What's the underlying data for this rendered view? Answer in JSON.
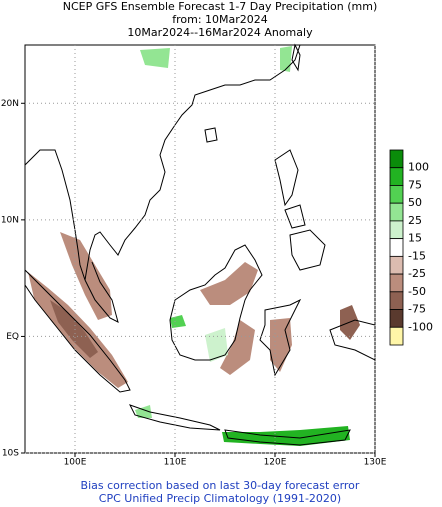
{
  "header": {
    "title": "NCEP GFS Ensemble Forecast 1-7 Day Precipitation (mm)",
    "line2": "from: 10Mar2024",
    "line3": "10Mar2024--16Mar2024 Anomaly"
  },
  "map": {
    "lon_range": [
      95,
      130
    ],
    "lat_range": [
      -10,
      25
    ],
    "lon_ticks": [
      {
        "value": 100,
        "label": "100E"
      },
      {
        "value": 110,
        "label": "110E"
      },
      {
        "value": 120,
        "label": "120E"
      },
      {
        "value": 130,
        "label": "130E"
      }
    ],
    "lat_ticks": [
      {
        "value": 20,
        "label": "20N"
      },
      {
        "value": 10,
        "label": "10N"
      },
      {
        "value": 0,
        "label": "EQ"
      },
      {
        "value": -10,
        "label": "10S"
      }
    ]
  },
  "colorbar": {
    "labels": [
      100,
      75,
      50,
      25,
      15,
      -15,
      -25,
      -50,
      -75,
      -100
    ],
    "colors": [
      "#0a8c0a",
      "#22b322",
      "#52d152",
      "#93e593",
      "#cdf2cd",
      "#ffffff",
      "#dcbcb0",
      "#bb8d7d",
      "#8e6152",
      "#5a3a2e",
      "#fff6a8"
    ]
  },
  "footer": {
    "line1": "Bias correction based on last 30-day forecast error",
    "line2": "CPC Unified Precip Climatology (1991-2020)"
  }
}
